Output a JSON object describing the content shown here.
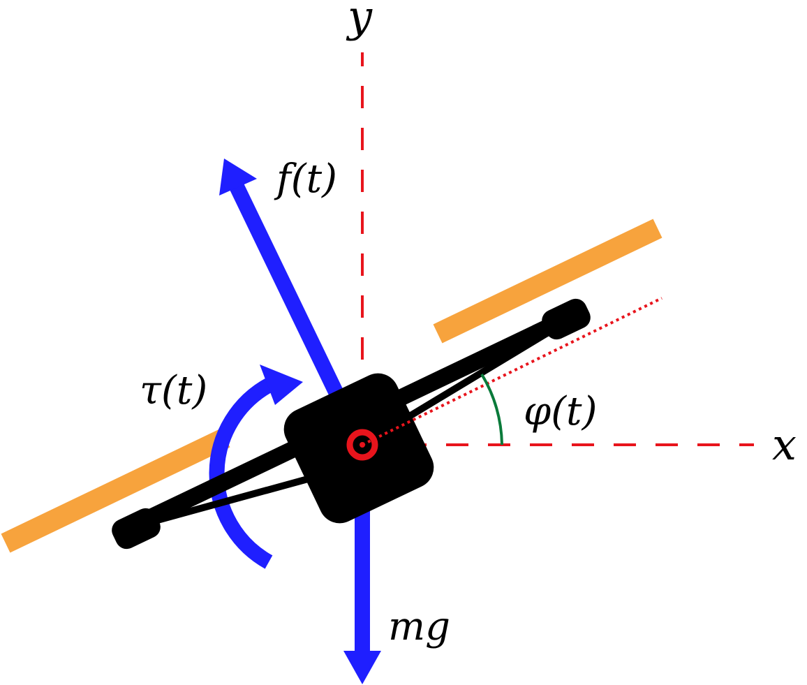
{
  "labels": {
    "y_axis": "y",
    "x_axis": "x",
    "thrust": "f(t)",
    "torque": "τ(t)",
    "angle": "φ(t)",
    "gravity": "mg"
  },
  "colors": {
    "axis": "#e8141c",
    "force": "#1f1fff",
    "rotor": "#f7a33d",
    "frame": "#000000",
    "angle_arc": "#0a7a3a",
    "background": "#ffffff"
  }
}
